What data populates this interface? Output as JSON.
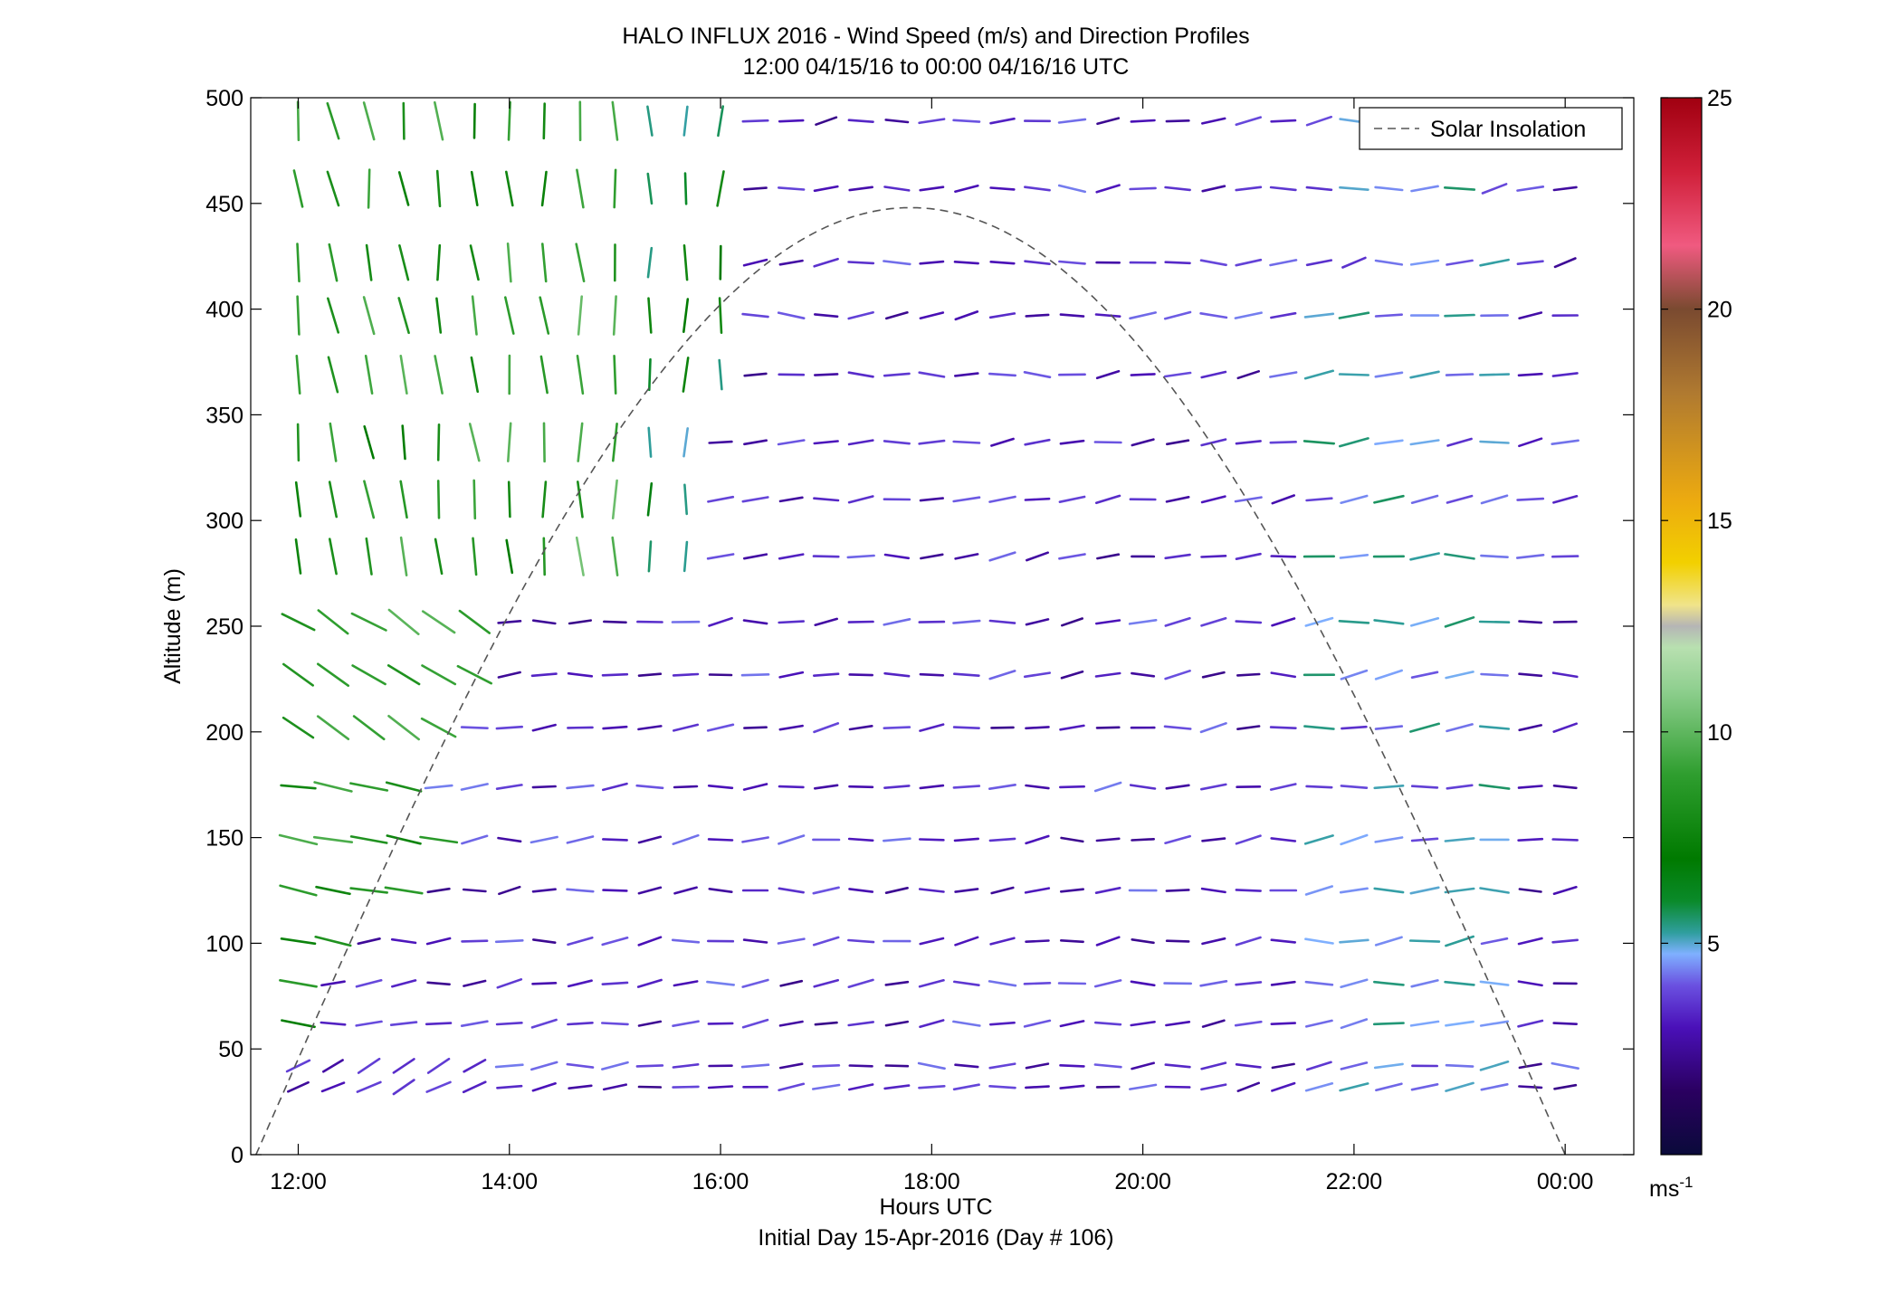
{
  "chart_data": {
    "type": "wind-barb profile",
    "title_line1": "HALO INFLUX 2016 - Wind Speed (m/s) and Direction Profiles",
    "title_line2": "12:00 04/15/16 to 00:00 04/16/16  UTC",
    "xlabel": "Hours UTC",
    "xlabel2": "Initial Day 15-Apr-2016 (Day # 106)",
    "ylabel": "Altitude (m)",
    "xlim": [
      11.55,
      24.65
    ],
    "ylim": [
      0,
      500
    ],
    "x_ticks": [
      12,
      14,
      16,
      18,
      20,
      22,
      24
    ],
    "x_tick_labels": [
      "12:00",
      "14:00",
      "16:00",
      "18:00",
      "20:00",
      "22:00",
      "00:00"
    ],
    "y_ticks": [
      0,
      50,
      100,
      150,
      200,
      250,
      300,
      350,
      400,
      450,
      500
    ],
    "y_tick_labels": [
      "0",
      "50",
      "100",
      "150",
      "200",
      "250",
      "300",
      "350",
      "400",
      "450",
      "500"
    ],
    "colorbar": {
      "range": [
        0,
        25
      ],
      "ticks": [
        5,
        10,
        15,
        20,
        25
      ],
      "tick_labels": [
        "5",
        "10",
        "15",
        "20",
        "25"
      ],
      "unit_label": "ms",
      "unit_sup": "-1"
    },
    "legend": {
      "entries": [
        "Solar Insolation"
      ],
      "placement": "top-right",
      "style": "dashed grey line"
    },
    "solar_insolation_curve": {
      "sunrise_hour": 11.6,
      "sunset_hour": 24.0,
      "peak_hour": 17.8,
      "peak_altitude_equivalent": 448
    },
    "wind_field": {
      "times_hours": [
        12.0,
        12.33,
        12.67,
        13.0,
        13.33,
        13.67,
        14.0,
        14.33,
        14.67,
        15.0,
        15.33,
        15.67,
        16.0,
        16.33,
        16.67,
        17.0,
        17.33,
        17.67,
        18.0,
        18.33,
        18.67,
        19.0,
        19.33,
        19.67,
        20.0,
        20.33,
        20.67,
        21.0,
        21.33,
        21.67,
        22.0,
        22.33,
        22.67,
        23.0,
        23.33,
        23.67,
        24.0
      ],
      "altitudes_m": [
        32,
        42,
        62,
        81,
        101,
        125,
        149,
        174,
        202,
        227,
        252,
        283,
        310,
        337,
        369,
        397,
        422,
        457,
        489
      ],
      "early_regime": "north-northwesterly winds at 6-10 m/s (greens) aloft before ~16:15 UTC, weaker to the southeast near the surface",
      "later_regime": "westerly/west-northwesterly winds at 2-5 m/s (purples and blues) after ~16:15 UTC"
    },
    "colors": {
      "frame": "#000000",
      "solar_curve": "#555555"
    }
  }
}
